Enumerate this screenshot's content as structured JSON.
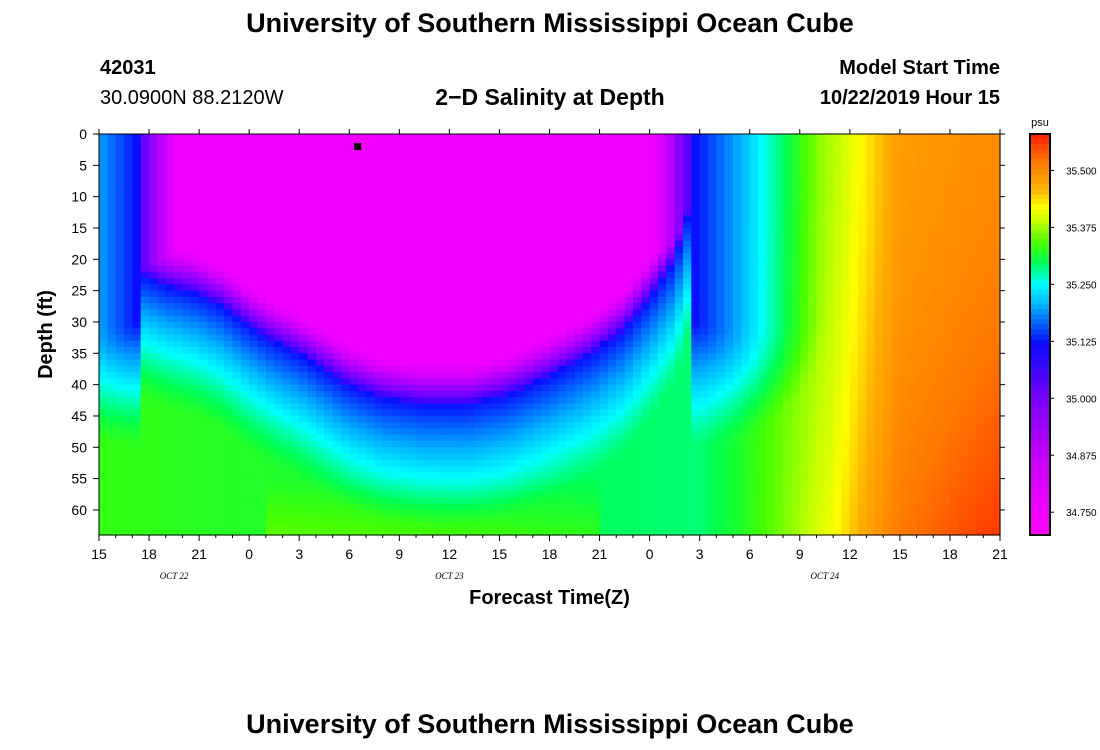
{
  "page": {
    "title_top": "University of Southern Mississippi Ocean Cube",
    "title_bottom": "University of Southern Mississippi Ocean Cube",
    "station_id": "42031",
    "station_coords": "30.0900N 88.2120W",
    "plot_title": "2−D Salinity at Depth",
    "model_start_label": "Model Start Time",
    "model_start_value": "10/22/2019 Hour 15"
  },
  "chart_data": {
    "type": "heatmap",
    "title": "2−D Salinity at Depth",
    "xlabel": "Forecast Time(Z)",
    "ylabel": "Depth (ft)",
    "x_hours_range": [
      0,
      54
    ],
    "ylim": [
      0,
      64
    ],
    "y_inverted": true,
    "x_tick_labels": [
      "15",
      "18",
      "21",
      "0",
      "3",
      "6",
      "9",
      "12",
      "15",
      "18",
      "21",
      "0",
      "3",
      "6",
      "9",
      "12",
      "15",
      "18",
      "21"
    ],
    "x_tick_hours": [
      0,
      3,
      6,
      9,
      12,
      15,
      18,
      21,
      24,
      27,
      30,
      33,
      36,
      39,
      42,
      45,
      48,
      51,
      54
    ],
    "date_labels": [
      {
        "text": "OCT 22",
        "hour": 4.5
      },
      {
        "text": "OCT 23",
        "hour": 21
      },
      {
        "text": "OCT 24",
        "hour": 43.5
      }
    ],
    "y_ticks": [
      0,
      5,
      10,
      15,
      20,
      25,
      30,
      35,
      40,
      45,
      50,
      55,
      60
    ],
    "colorbar": {
      "unit": "psu",
      "range": [
        34.7,
        35.58
      ],
      "ticks": [
        "35.500",
        "35.375",
        "35.250",
        "35.125",
        "35.000",
        "34.875",
        "34.750"
      ],
      "tick_values": [
        35.5,
        35.375,
        35.25,
        35.125,
        35.0,
        34.875,
        34.75
      ]
    },
    "marker": {
      "hour": 15.5,
      "depth": 2
    },
    "low_salinity_core": {
      "value_psu": 34.75,
      "start_hour": 2.3,
      "end_hour": 35.6,
      "bottom_depth_by_hour": [
        [
          2.3,
          22
        ],
        [
          4,
          24
        ],
        [
          6,
          25.5
        ],
        [
          7.5,
          27.5
        ],
        [
          9,
          30.5
        ],
        [
          10.5,
          33
        ],
        [
          12,
          35
        ],
        [
          13.5,
          37.5
        ],
        [
          15,
          40
        ],
        [
          17,
          42
        ],
        [
          19.5,
          43
        ],
        [
          22,
          43
        ],
        [
          24.5,
          41.5
        ],
        [
          27,
          38.5
        ],
        [
          29.5,
          35
        ],
        [
          31.5,
          31
        ],
        [
          33,
          26
        ],
        [
          34.5,
          20
        ],
        [
          35.6,
          10
        ]
      ]
    },
    "background_gradient": [
      {
        "hour": 0,
        "psu": 35.33
      },
      {
        "hour": 36,
        "psu": 35.29
      },
      {
        "hour": 44,
        "psu": 35.38
      },
      {
        "hour": 48,
        "psu": 35.48
      },
      {
        "hour": 54,
        "psu": 35.5
      }
    ],
    "bottom_max_psu": 35.57
  }
}
